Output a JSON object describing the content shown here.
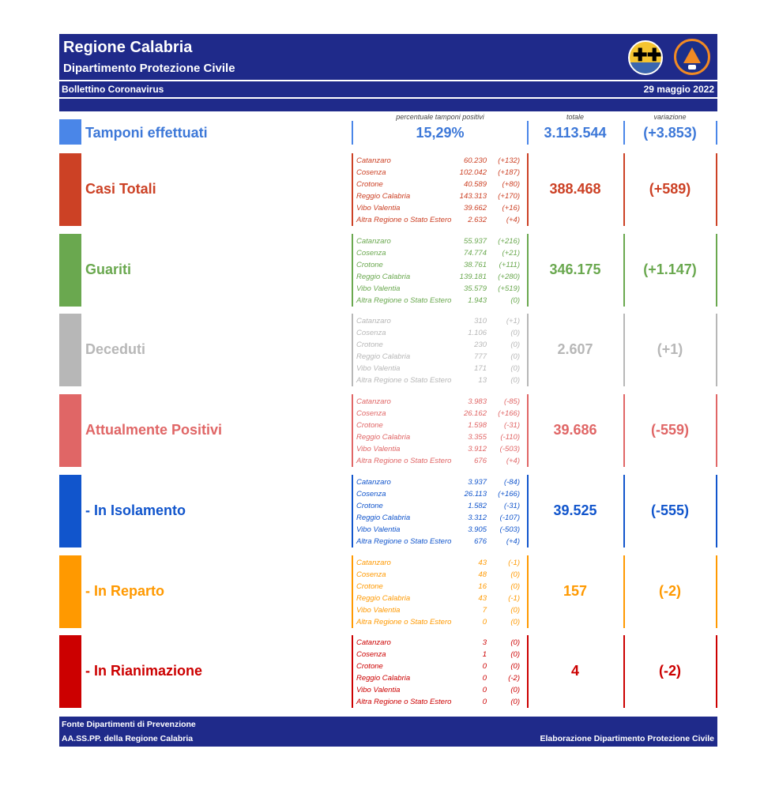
{
  "header": {
    "title": "Regione Calabria",
    "subtitle": "Dipartimento Protezione Civile",
    "bulletin": "Bollettino Coronavirus",
    "date": "29 maggio 2022"
  },
  "columns": {
    "perc_label": "percentuale tamponi positivi",
    "total_label": "totale",
    "var_label": "variazione"
  },
  "tamponi": {
    "label": "Tamponi effettuati",
    "perc": "15,29%",
    "total": "3.113.544",
    "var": "(+3.853)"
  },
  "colors": {
    "tamponi": "#4a86e8",
    "casi": "#cc4125",
    "guariti": "#6aa84f",
    "deceduti": "#b7b7b7",
    "positivi": "#e06666",
    "isolamento": "#1155cc",
    "reparto": "#ff9900",
    "rianimazione": "#cc0000"
  },
  "rows": [
    {
      "label": "Casi Totali",
      "total": "388.468",
      "var": "(+589)",
      "items": [
        {
          "name": "Catanzaro",
          "num": "60.230",
          "chg": "(+132)"
        },
        {
          "name": "Cosenza",
          "num": "102.042",
          "chg": "(+187)"
        },
        {
          "name": "Crotone",
          "num": "40.589",
          "chg": "(+80)"
        },
        {
          "name": "Reggio Calabria",
          "num": "143.313",
          "chg": "(+170)"
        },
        {
          "name": "Vibo Valentia",
          "num": "39.662",
          "chg": "(+16)"
        },
        {
          "name": "Altra Regione o Stato Estero",
          "num": "2.632",
          "chg": "(+4)"
        }
      ]
    },
    {
      "label": "Guariti",
      "total": "346.175",
      "var": "(+1.147)",
      "items": [
        {
          "name": "Catanzaro",
          "num": "55.937",
          "chg": "(+216)"
        },
        {
          "name": "Cosenza",
          "num": "74.774",
          "chg": "(+21)"
        },
        {
          "name": "Crotone",
          "num": "38.761",
          "chg": "(+111)"
        },
        {
          "name": "Reggio Calabria",
          "num": "139.181",
          "chg": "(+280)"
        },
        {
          "name": "Vibo Valentia",
          "num": "35.579",
          "chg": "(+519)"
        },
        {
          "name": "Altra Regione o Stato Estero",
          "num": "1.943",
          "chg": "(0)"
        }
      ]
    },
    {
      "label": "Deceduti",
      "total": "2.607",
      "var": "(+1)",
      "items": [
        {
          "name": "Catanzaro",
          "num": "310",
          "chg": "(+1)"
        },
        {
          "name": "Cosenza",
          "num": "1.106",
          "chg": "(0)"
        },
        {
          "name": "Crotone",
          "num": "230",
          "chg": "(0)"
        },
        {
          "name": "Reggio Calabria",
          "num": "777",
          "chg": "(0)"
        },
        {
          "name": "Vibo Valentia",
          "num": "171",
          "chg": "(0)"
        },
        {
          "name": "Altra Regione o Stato Estero",
          "num": "13",
          "chg": "(0)"
        }
      ]
    },
    {
      "label": "Attualmente Positivi",
      "total": "39.686",
      "var": "(-559)",
      "items": [
        {
          "name": "Catanzaro",
          "num": "3.983",
          "chg": "(-85)"
        },
        {
          "name": "Cosenza",
          "num": "26.162",
          "chg": "(+166)"
        },
        {
          "name": "Crotone",
          "num": "1.598",
          "chg": "(-31)"
        },
        {
          "name": "Reggio Calabria",
          "num": "3.355",
          "chg": "(-110)"
        },
        {
          "name": "Vibo Valentia",
          "num": "3.912",
          "chg": "(-503)"
        },
        {
          "name": "Altra Regione o Stato Estero",
          "num": "676",
          "chg": "(+4)"
        }
      ]
    },
    {
      "label": " - In Isolamento",
      "total": "39.525",
      "var": "(-555)",
      "items": [
        {
          "name": "Catanzaro",
          "num": "3.937",
          "chg": "(-84)"
        },
        {
          "name": "Cosenza",
          "num": "26.113",
          "chg": "(+166)"
        },
        {
          "name": "Crotone",
          "num": "1.582",
          "chg": "(-31)"
        },
        {
          "name": "Reggio Calabria",
          "num": "3.312",
          "chg": "(-107)"
        },
        {
          "name": "Vibo Valentia",
          "num": "3.905",
          "chg": "(-503)"
        },
        {
          "name": "Altra Regione o Stato Estero",
          "num": "676",
          "chg": "(+4)"
        }
      ]
    },
    {
      "label": " - In Reparto",
      "total": "157",
      "var": "(-2)",
      "items": [
        {
          "name": "Catanzaro",
          "num": "43",
          "chg": "(-1)"
        },
        {
          "name": "Cosenza",
          "num": "48",
          "chg": "(0)"
        },
        {
          "name": "Crotone",
          "num": "16",
          "chg": "(0)"
        },
        {
          "name": "Reggio Calabria",
          "num": "43",
          "chg": "(-1)"
        },
        {
          "name": "Vibo Valentia",
          "num": "7",
          "chg": "(0)"
        },
        {
          "name": "Altra Regione o Stato Estero",
          "num": "0",
          "chg": "(0)"
        }
      ]
    },
    {
      "label": " - In Rianimazione",
      "total": "4",
      "var": "(-2)",
      "items": [
        {
          "name": "Catanzaro",
          "num": "3",
          "chg": "(0)"
        },
        {
          "name": "Cosenza",
          "num": "1",
          "chg": "(0)"
        },
        {
          "name": "Crotone",
          "num": "0",
          "chg": "(0)"
        },
        {
          "name": "Reggio Calabria",
          "num": "0",
          "chg": "(-2)"
        },
        {
          "name": "Vibo Valentia",
          "num": "0",
          "chg": "(0)"
        },
        {
          "name": "Altra Regione o Stato Estero",
          "num": "0",
          "chg": "(0)"
        }
      ]
    }
  ],
  "footer": {
    "source1": "Fonte Dipartimenti di Prevenzione",
    "source2": "AA.SS.PP.  della Regione Calabria",
    "credit": "Elaborazione Dipartimento Protezione Civile"
  }
}
